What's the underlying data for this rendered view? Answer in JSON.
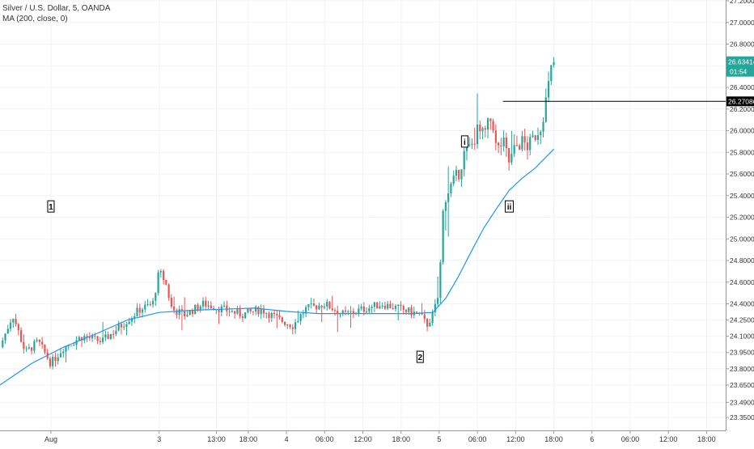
{
  "chart_data": {
    "type": "candlestick",
    "title": "Silver / U.S. Dollar, 5, OANDA",
    "indicator": "MA (200, close, 0)",
    "xlabel": "",
    "ylabel": "",
    "ylim": [
      23.27,
      27.22
    ],
    "grid": true,
    "colors": {
      "up": "#26a69a",
      "down": "#ef5350",
      "ma": "#2196f3",
      "line": "#000000",
      "axis_text": "#333333"
    },
    "y_ticks": [
      {
        "value": 27.2,
        "label": "27.20000"
      },
      {
        "value": 27.0,
        "label": "27.00000"
      },
      {
        "value": 26.8,
        "label": "26.80000"
      },
      {
        "value": 26.6,
        "label": "26.60000"
      },
      {
        "value": 26.4,
        "label": "26.40000"
      },
      {
        "value": 26.2,
        "label": "26.20000"
      },
      {
        "value": 26.0,
        "label": "26.00000"
      },
      {
        "value": 25.8,
        "label": "25.80000"
      },
      {
        "value": 25.6,
        "label": "25.60000"
      },
      {
        "value": 25.4,
        "label": "25.40000"
      },
      {
        "value": 25.2,
        "label": "25.20000"
      },
      {
        "value": 25.0,
        "label": "25.00000"
      },
      {
        "value": 24.8,
        "label": "24.80000"
      },
      {
        "value": 24.6,
        "label": "24.60000"
      },
      {
        "value": 24.4,
        "label": "24.40000"
      },
      {
        "value": 24.25,
        "label": "24.25000"
      },
      {
        "value": 24.1,
        "label": "24.10000"
      },
      {
        "value": 23.95,
        "label": "23.95000"
      },
      {
        "value": 23.8,
        "label": "23.80000"
      },
      {
        "value": 23.65,
        "label": "23.65000"
      },
      {
        "value": 23.49,
        "label": "23.49000"
      },
      {
        "value": 23.35,
        "label": "23.35000"
      }
    ],
    "x_ticks": [
      {
        "t": -2,
        "label": "Aug"
      },
      {
        "t": 15,
        "label": "3"
      },
      {
        "t": 24,
        "label": "13:00"
      },
      {
        "t": 29,
        "label": "18:00"
      },
      {
        "t": 35,
        "label": "4"
      },
      {
        "t": 41,
        "label": "06:00"
      },
      {
        "t": 47,
        "label": "12:00"
      },
      {
        "t": 53,
        "label": "18:00"
      },
      {
        "t": 59,
        "label": "5"
      },
      {
        "t": 65,
        "label": "06:00"
      },
      {
        "t": 71,
        "label": "12:00"
      },
      {
        "t": 77,
        "label": "18:00"
      },
      {
        "t": 83,
        "label": "6"
      },
      {
        "t": 89,
        "label": "06:00"
      },
      {
        "t": 95,
        "label": "12:00"
      },
      {
        "t": 101,
        "label": "18:00"
      }
    ],
    "x_range": [
      -10,
      104
    ],
    "price_path": [
      [
        -10,
        24.0
      ],
      [
        -8,
        24.3
      ],
      [
        -6,
        23.95
      ],
      [
        -4,
        24.05
      ],
      [
        -2,
        23.85
      ],
      [
        0,
        24.0
      ],
      [
        3,
        24.1
      ],
      [
        6,
        24.05
      ],
      [
        9,
        24.2
      ],
      [
        12,
        24.35
      ],
      [
        14,
        24.4
      ],
      [
        15,
        24.7
      ],
      [
        16,
        24.6
      ],
      [
        17,
        24.35
      ],
      [
        19,
        24.3
      ],
      [
        22,
        24.4
      ],
      [
        25,
        24.35
      ],
      [
        28,
        24.3
      ],
      [
        31,
        24.35
      ],
      [
        34,
        24.25
      ],
      [
        36,
        24.2
      ],
      [
        38,
        24.35
      ],
      [
        41,
        24.4
      ],
      [
        44,
        24.3
      ],
      [
        47,
        24.35
      ],
      [
        50,
        24.4
      ],
      [
        53,
        24.35
      ],
      [
        56,
        24.3
      ],
      [
        57,
        24.2
      ],
      [
        58,
        24.3
      ],
      [
        59,
        24.5
      ],
      [
        59.5,
        25.2
      ],
      [
        60,
        25.4
      ],
      [
        61,
        25.5
      ],
      [
        62,
        25.6
      ],
      [
        63,
        25.8
      ],
      [
        64,
        25.85
      ],
      [
        65,
        26.0
      ],
      [
        66,
        25.95
      ],
      [
        67,
        26.1
      ],
      [
        67.5,
        26.05
      ],
      [
        68,
        25.8
      ],
      [
        69,
        25.9
      ],
      [
        70,
        25.7
      ],
      [
        71,
        25.85
      ],
      [
        72,
        25.9
      ],
      [
        73,
        25.85
      ],
      [
        74,
        25.95
      ],
      [
        75,
        26.05
      ],
      [
        76,
        26.35
      ],
      [
        76.5,
        26.55
      ],
      [
        77,
        26.63
      ]
    ],
    "ma_path": [
      [
        -10,
        23.65
      ],
      [
        -5,
        23.85
      ],
      [
        0,
        24.0
      ],
      [
        5,
        24.12
      ],
      [
        10,
        24.25
      ],
      [
        15,
        24.32
      ],
      [
        20,
        24.34
      ],
      [
        25,
        24.35
      ],
      [
        30,
        24.36
      ],
      [
        35,
        24.33
      ],
      [
        40,
        24.31
      ],
      [
        45,
        24.31
      ],
      [
        50,
        24.31
      ],
      [
        55,
        24.31
      ],
      [
        58,
        24.32
      ],
      [
        60,
        24.45
      ],
      [
        62,
        24.65
      ],
      [
        64,
        24.88
      ],
      [
        66,
        25.1
      ],
      [
        68,
        25.28
      ],
      [
        70,
        25.45
      ],
      [
        72,
        25.56
      ],
      [
        74,
        25.65
      ],
      [
        76,
        25.77
      ],
      [
        77,
        25.83
      ]
    ],
    "annotations": [
      {
        "label": "1",
        "t": -2,
        "y": 25.3
      },
      {
        "label": "2",
        "t": 56,
        "y": 23.91
      },
      {
        "label": "i",
        "t": 63,
        "y": 25.9
      },
      {
        "label": "ii",
        "t": 70,
        "y": 25.3
      }
    ],
    "horizontal_line": {
      "price": 26.27086,
      "label": "26.27086",
      "t_start": 69
    },
    "last_price": {
      "price": 26.63414,
      "label": "26.63414",
      "countdown": "01:54"
    },
    "candles_count": 210
  }
}
